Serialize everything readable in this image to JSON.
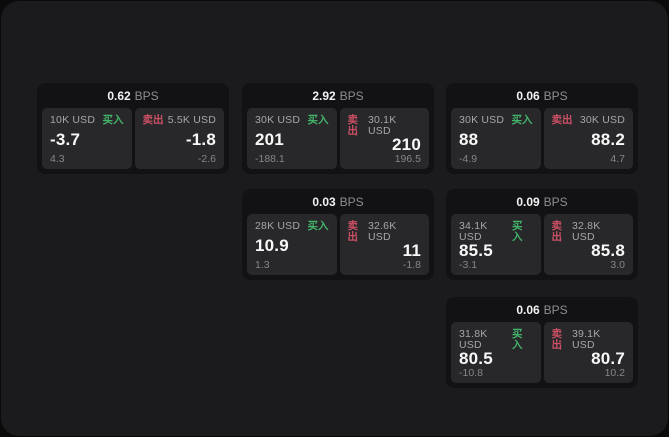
{
  "labels": {
    "bps_unit": "BPS",
    "buy": "买入",
    "sell": "卖出"
  },
  "colors": {
    "buy": "#43b36a",
    "sell": "#cc5064",
    "panel_bg": "#1b1b1d",
    "card_bg": "#121214",
    "tile_bg": "#28282b"
  },
  "cards": [
    {
      "bps": "0.62",
      "buy": {
        "size": "10K USD",
        "value": "-3.7",
        "sub": "4.3"
      },
      "sell": {
        "size": "5.5K USD",
        "value": "-1.8",
        "sub": "-2.6"
      }
    },
    {
      "bps": "2.92",
      "buy": {
        "size": "30K USD",
        "value": "201",
        "sub": "-188.1"
      },
      "sell": {
        "size": "30.1K USD",
        "value": "210",
        "sub": "196.5"
      }
    },
    {
      "bps": "0.06",
      "buy": {
        "size": "30K USD",
        "value": "88",
        "sub": "-4.9"
      },
      "sell": {
        "size": "30K USD",
        "value": "88.2",
        "sub": "4.7"
      }
    },
    {
      "bps": "0.03",
      "buy": {
        "size": "28K USD",
        "value": "10.9",
        "sub": "1.3"
      },
      "sell": {
        "size": "32.6K USD",
        "value": "11",
        "sub": "-1.8"
      }
    },
    {
      "bps": "0.09",
      "buy": {
        "size": "34.1K USD",
        "value": "85.5",
        "sub": "-3.1"
      },
      "sell": {
        "size": "32.8K USD",
        "value": "85.8",
        "sub": "3.0"
      }
    },
    {
      "bps": "0.06",
      "buy": {
        "size": "31.8K USD",
        "value": "80.5",
        "sub": "-10.8"
      },
      "sell": {
        "size": "39.1K USD",
        "value": "80.7",
        "sub": "10.2"
      }
    }
  ]
}
